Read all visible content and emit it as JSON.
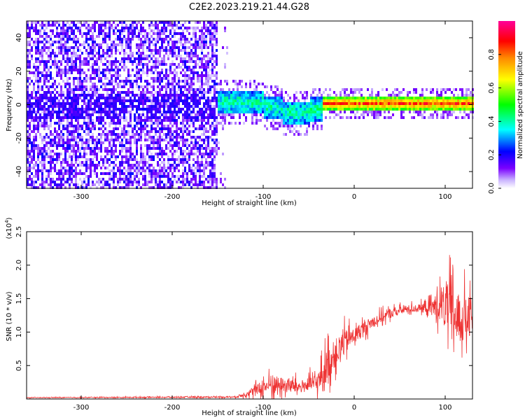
{
  "title": "C2E2.2023.219.21.44.G28",
  "chart_data": [
    {
      "type": "heatmap",
      "xlabel": "Height of straight line (km)",
      "ylabel": "Frequency (Hz)",
      "xlim": [
        -360,
        130
      ],
      "ylim": [
        -50,
        50
      ],
      "xticks": [
        -300,
        -200,
        -100,
        0,
        100
      ],
      "yticks": [
        -40,
        -20,
        0,
        20,
        40
      ],
      "colorbar": {
        "label": "Normalized spectral amplitude",
        "range": [
          0.0,
          1.0
        ],
        "ticks": [
          "0.0",
          "0.2",
          "0.4",
          "0.6",
          "0.8"
        ],
        "colormap": "rainbow (white-purple-blue-cyan-green-yellow-orange-red-magenta)"
      },
      "regions": [
        {
          "x_range": [
            -360,
            -150
          ],
          "description": "broadband noise",
          "amplitude_range": [
            0.0,
            0.3
          ]
        },
        {
          "x_range": [
            -160,
            -30
          ],
          "description": "signal trace",
          "freq_center": [
            2,
            0,
            -5,
            0
          ],
          "amplitude_range": [
            0.2,
            0.55
          ]
        },
        {
          "x_range": [
            -30,
            130
          ],
          "description": "steady signal near 2 Hz",
          "freq_center": 2,
          "amplitude_range": [
            0.5,
            0.95
          ]
        }
      ]
    },
    {
      "type": "line",
      "xlabel": "Height of straight line (km)",
      "ylabel": "SNR (10 * v/v)",
      "multiplier": "(x10",
      "multiplier_exp": "4",
      "multiplier_close": ")",
      "xlim": [
        -360,
        130
      ],
      "ylim": [
        0,
        2.5
      ],
      "xticks": [
        -300,
        -200,
        -100,
        0,
        100
      ],
      "yticks": [
        "0.5",
        "1.0",
        "1.5",
        "2.0",
        "2.5"
      ],
      "series_color": "#ee3333",
      "envelope": {
        "x": [
          -360,
          -130,
          -110,
          -90,
          -60,
          -40,
          -30,
          -20,
          -10,
          0,
          20,
          40,
          60,
          80,
          95,
          105,
          115,
          130
        ],
        "y": [
          0.02,
          0.03,
          0.12,
          0.22,
          0.18,
          0.25,
          0.5,
          0.7,
          0.85,
          0.95,
          1.15,
          1.28,
          1.35,
          1.36,
          1.4,
          1.3,
          1.2,
          1.2
        ],
        "amplitude": [
          0.01,
          0.02,
          0.15,
          0.3,
          0.2,
          0.3,
          0.55,
          0.45,
          0.4,
          0.25,
          0.2,
          0.15,
          0.12,
          0.15,
          0.5,
          0.9,
          0.8,
          0.7
        ]
      }
    }
  ]
}
